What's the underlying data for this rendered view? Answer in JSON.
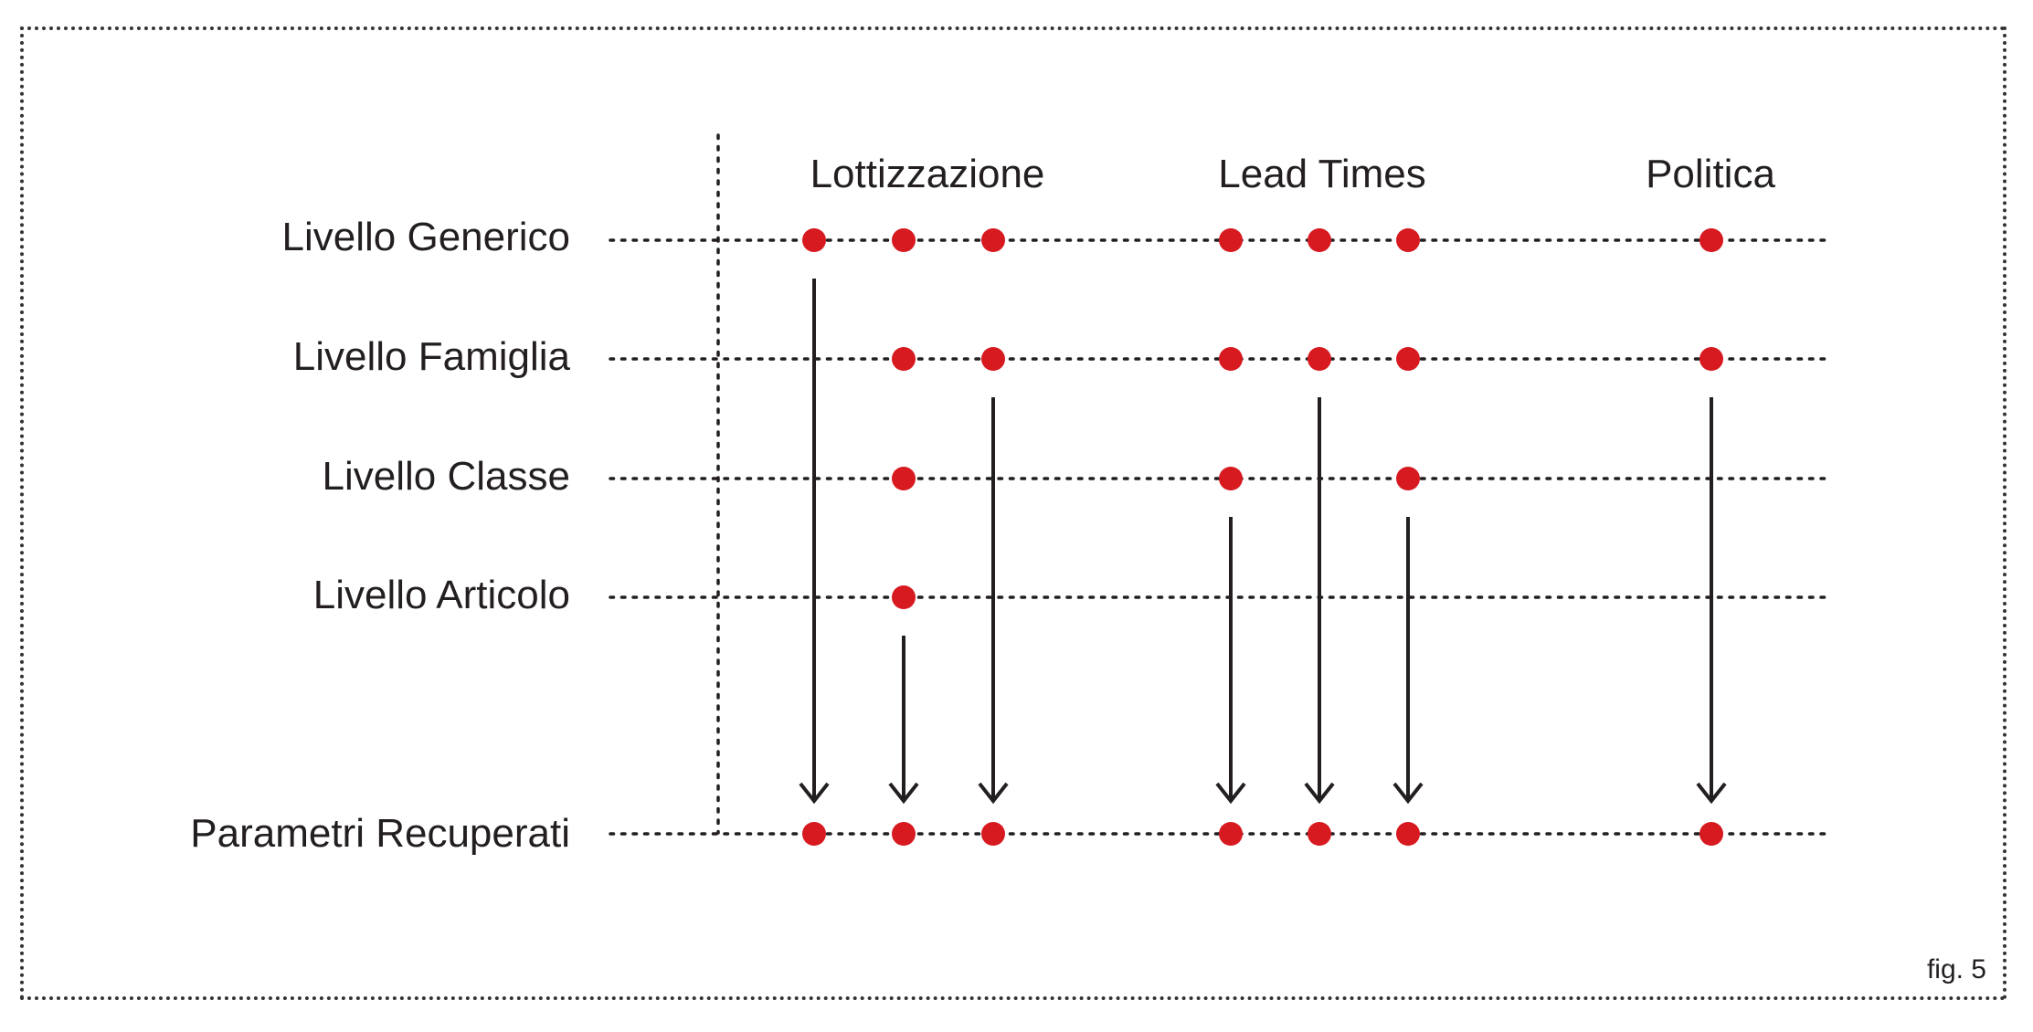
{
  "colors": {
    "text": "#231f20",
    "accent": "#d71920",
    "dots": "#d71920",
    "lines": "#231f20"
  },
  "columns": [
    {
      "key": "lottizzazione",
      "label": "Lottizzazione"
    },
    {
      "key": "lead_times",
      "label": "Lead Times"
    },
    {
      "key": "politica",
      "label": "Politica"
    }
  ],
  "rows": [
    {
      "key": "generico",
      "label": "Livello Generico"
    },
    {
      "key": "famiglia",
      "label": "Livello Famiglia"
    },
    {
      "key": "classe",
      "label": "Livello Classe"
    },
    {
      "key": "articolo",
      "label": "Livello Articolo"
    }
  ],
  "result_row": {
    "label": "Parametri Recuperati"
  },
  "parameters": [
    {
      "column": "lottizzazione",
      "present_in": [
        "generico"
      ],
      "source": "generico"
    },
    {
      "column": "lottizzazione",
      "present_in": [
        "generico",
        "famiglia",
        "classe",
        "articolo"
      ],
      "source": "articolo"
    },
    {
      "column": "lottizzazione",
      "present_in": [
        "generico",
        "famiglia"
      ],
      "source": "famiglia"
    },
    {
      "column": "lead_times",
      "present_in": [
        "generico",
        "famiglia",
        "classe"
      ],
      "source": "classe"
    },
    {
      "column": "lead_times",
      "present_in": [
        "generico",
        "famiglia"
      ],
      "source": "famiglia"
    },
    {
      "column": "lead_times",
      "present_in": [
        "generico",
        "famiglia",
        "classe"
      ],
      "source": "classe"
    },
    {
      "column": "politica",
      "present_in": [
        "generico",
        "famiglia"
      ],
      "source": "famiglia"
    }
  ],
  "figure_label": "fig. 5"
}
